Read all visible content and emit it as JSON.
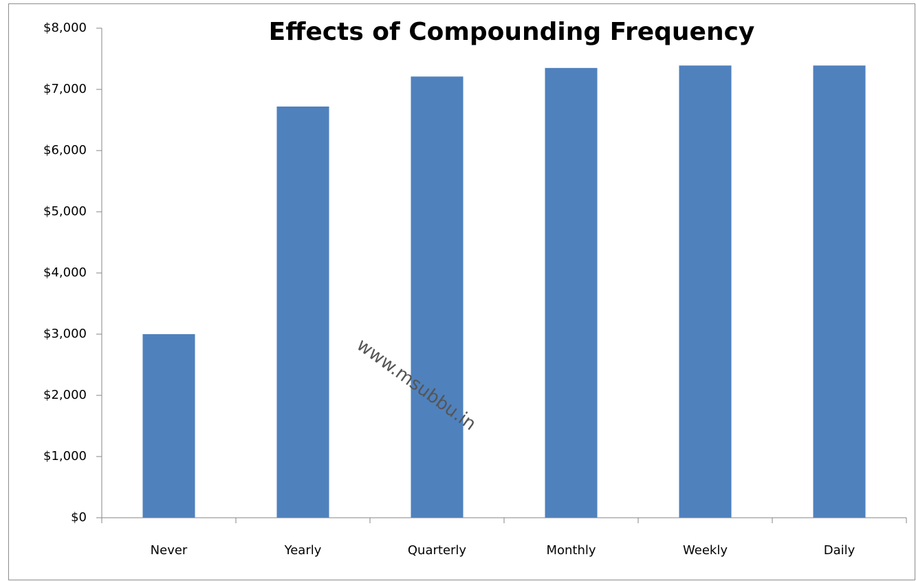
{
  "chart_data": {
    "type": "bar",
    "title": "Effects of Compounding Frequency",
    "watermark": "www.msubbu.in",
    "categories": [
      "Never",
      "Yearly",
      "Quarterly",
      "Monthly",
      "Weekly",
      "Daily"
    ],
    "values": [
      3000,
      6720,
      7210,
      7350,
      7390,
      7390
    ],
    "color": "#4f81bd",
    "ylim": [
      0,
      8000
    ],
    "yticks": [
      {
        "value": 0,
        "label": "$0"
      },
      {
        "value": 1000,
        "label": "$1,000"
      },
      {
        "value": 2000,
        "label": "$2,000"
      },
      {
        "value": 3000,
        "label": "$3,000"
      },
      {
        "value": 4000,
        "label": "$4,000"
      },
      {
        "value": 5000,
        "label": "$5,000"
      },
      {
        "value": 6000,
        "label": "$6,000"
      },
      {
        "value": 7000,
        "label": "$7,000"
      },
      {
        "value": 8000,
        "label": "$8,000"
      }
    ],
    "grid": false
  }
}
